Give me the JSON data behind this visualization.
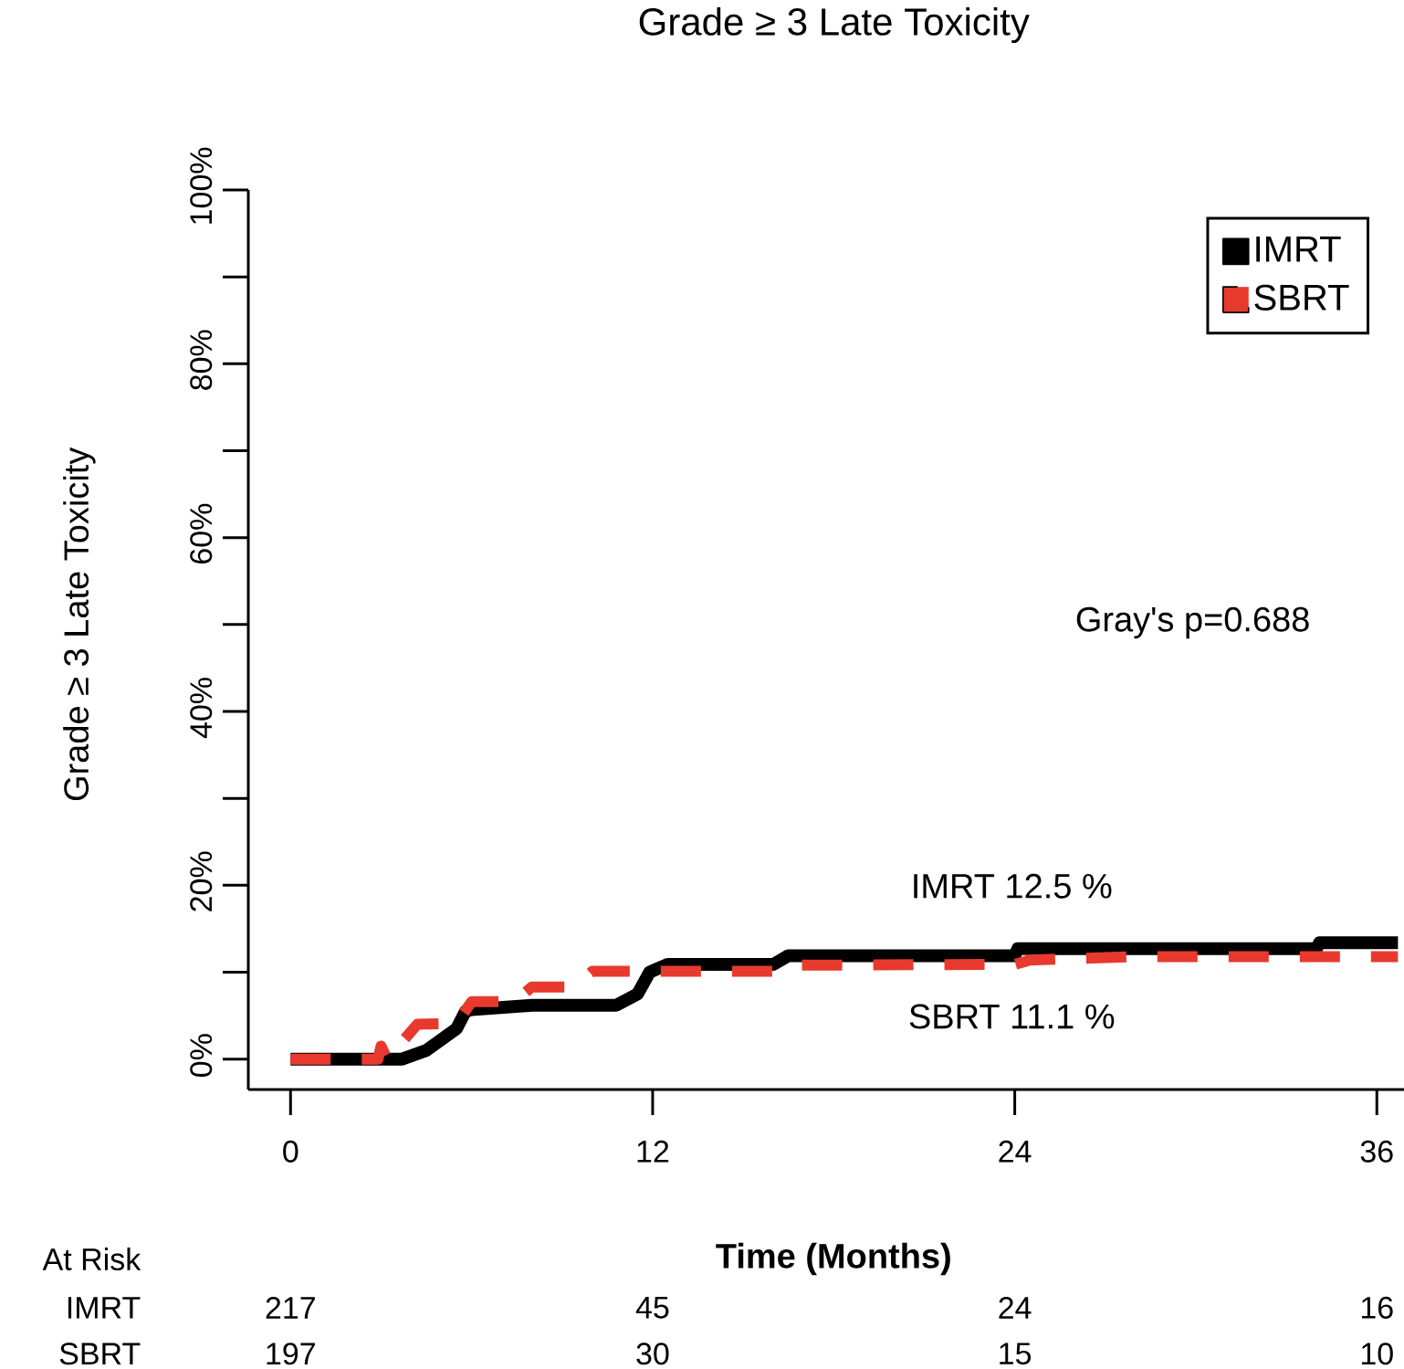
{
  "chart_data": {
    "type": "line",
    "title": "Grade ≥ 3 Late Toxicity",
    "xlabel": "Time (Months)",
    "ylabel": "Grade ≥ 3 Late Toxicity",
    "xlim": [
      -1.4,
      36.9
    ],
    "ylim": [
      -3.5,
      100
    ],
    "xticks": [
      0,
      12,
      24,
      36
    ],
    "yticks": [
      {
        "value": 0,
        "label": "0%"
      },
      {
        "value": 20,
        "label": "20%"
      },
      {
        "value": 40,
        "label": "40%"
      },
      {
        "value": 60,
        "label": "60%"
      },
      {
        "value": 80,
        "label": "80%"
      },
      {
        "value": 100,
        "label": "100%"
      }
    ],
    "legend": "top right",
    "grid": false,
    "marker": "none",
    "series": [
      {
        "name": "IMRT",
        "color": "#000000",
        "line_style": "solid",
        "x": [
          0,
          3.7,
          4.5,
          5.5,
          5.8,
          6,
          8,
          10.8,
          11.5,
          11.9,
          12.5,
          16,
          16.5,
          24,
          24.1,
          34,
          34.1,
          36.7
        ],
        "values": [
          0,
          0,
          1,
          3.5,
          5.5,
          5.7,
          6.2,
          6.2,
          7.5,
          10,
          10.9,
          10.9,
          11.9,
          11.9,
          12.7,
          12.7,
          13.4,
          13.4
        ]
      },
      {
        "name": "SBRT",
        "color": "#e8392f",
        "line_style": "dashed",
        "x": [
          0,
          2.9,
          3.0,
          3.2,
          4.2,
          5.5,
          6,
          7.4,
          8,
          9.4,
          10,
          16,
          16.5,
          24,
          24.5,
          28,
          36.7
        ],
        "values": [
          0,
          0,
          1.5,
          0,
          4,
          4.1,
          6.6,
          6.6,
          8.3,
          8.3,
          10.1,
          10.1,
          10.8,
          10.9,
          11.4,
          11.8,
          11.8
        ]
      }
    ],
    "annotations": [
      "Gray's p=0.688",
      "IMRT  12.5 %",
      "SBRT  11.1 %",
      "At Risk",
      "IMRT",
      "217",
      "45",
      "24",
      "16",
      "SBRT",
      "197",
      "30",
      "15",
      "10"
    ]
  }
}
